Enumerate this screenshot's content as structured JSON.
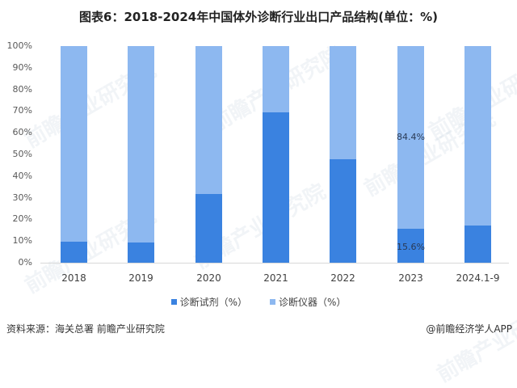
{
  "title": "图表6：2018-2024年中国体外诊断行业出口产品结构(单位：%)",
  "colors": {
    "dark": "#3a82e0",
    "light": "#8db8f0"
  },
  "y_ticks": [
    "100%",
    "90%",
    "80%",
    "70%",
    "60%",
    "50%",
    "40%",
    "30%",
    "20%",
    "10%",
    "0%"
  ],
  "legend": [
    {
      "label": "诊断试剂（%）",
      "color": "#3a82e0"
    },
    {
      "label": "诊断仪器（%）",
      "color": "#8db8f0"
    }
  ],
  "data_labels": {
    "l2023_light": "84.4%",
    "l2023_dark": "15.6%"
  },
  "footer": {
    "source": "资料来源：海关总署 前瞻产业研究院",
    "credit": "@前瞻经济学人APP"
  },
  "watermark": "前瞻产业研究院",
  "chart_data": {
    "type": "bar",
    "stacked": true,
    "title": "图表6：2018-2024年中国体外诊断行业出口产品结构(单位：%)",
    "xlabel": "",
    "ylabel": "",
    "ylim": [
      0,
      100
    ],
    "categories": [
      "2018",
      "2019",
      "2020",
      "2021",
      "2022",
      "2023",
      "2024.1-9"
    ],
    "series": [
      {
        "name": "诊断试剂（%）",
        "values": [
          9.7,
          9.3,
          31.7,
          69.4,
          47.8,
          15.6,
          17.2
        ]
      },
      {
        "name": "诊断仪器（%）",
        "values": [
          90.3,
          90.7,
          68.3,
          30.6,
          52.2,
          84.4,
          82.8
        ]
      }
    ],
    "data_labels_shown": {
      "2023": [
        "15.6%",
        "84.4%"
      ]
    },
    "legend_position": "bottom",
    "grid": false
  }
}
